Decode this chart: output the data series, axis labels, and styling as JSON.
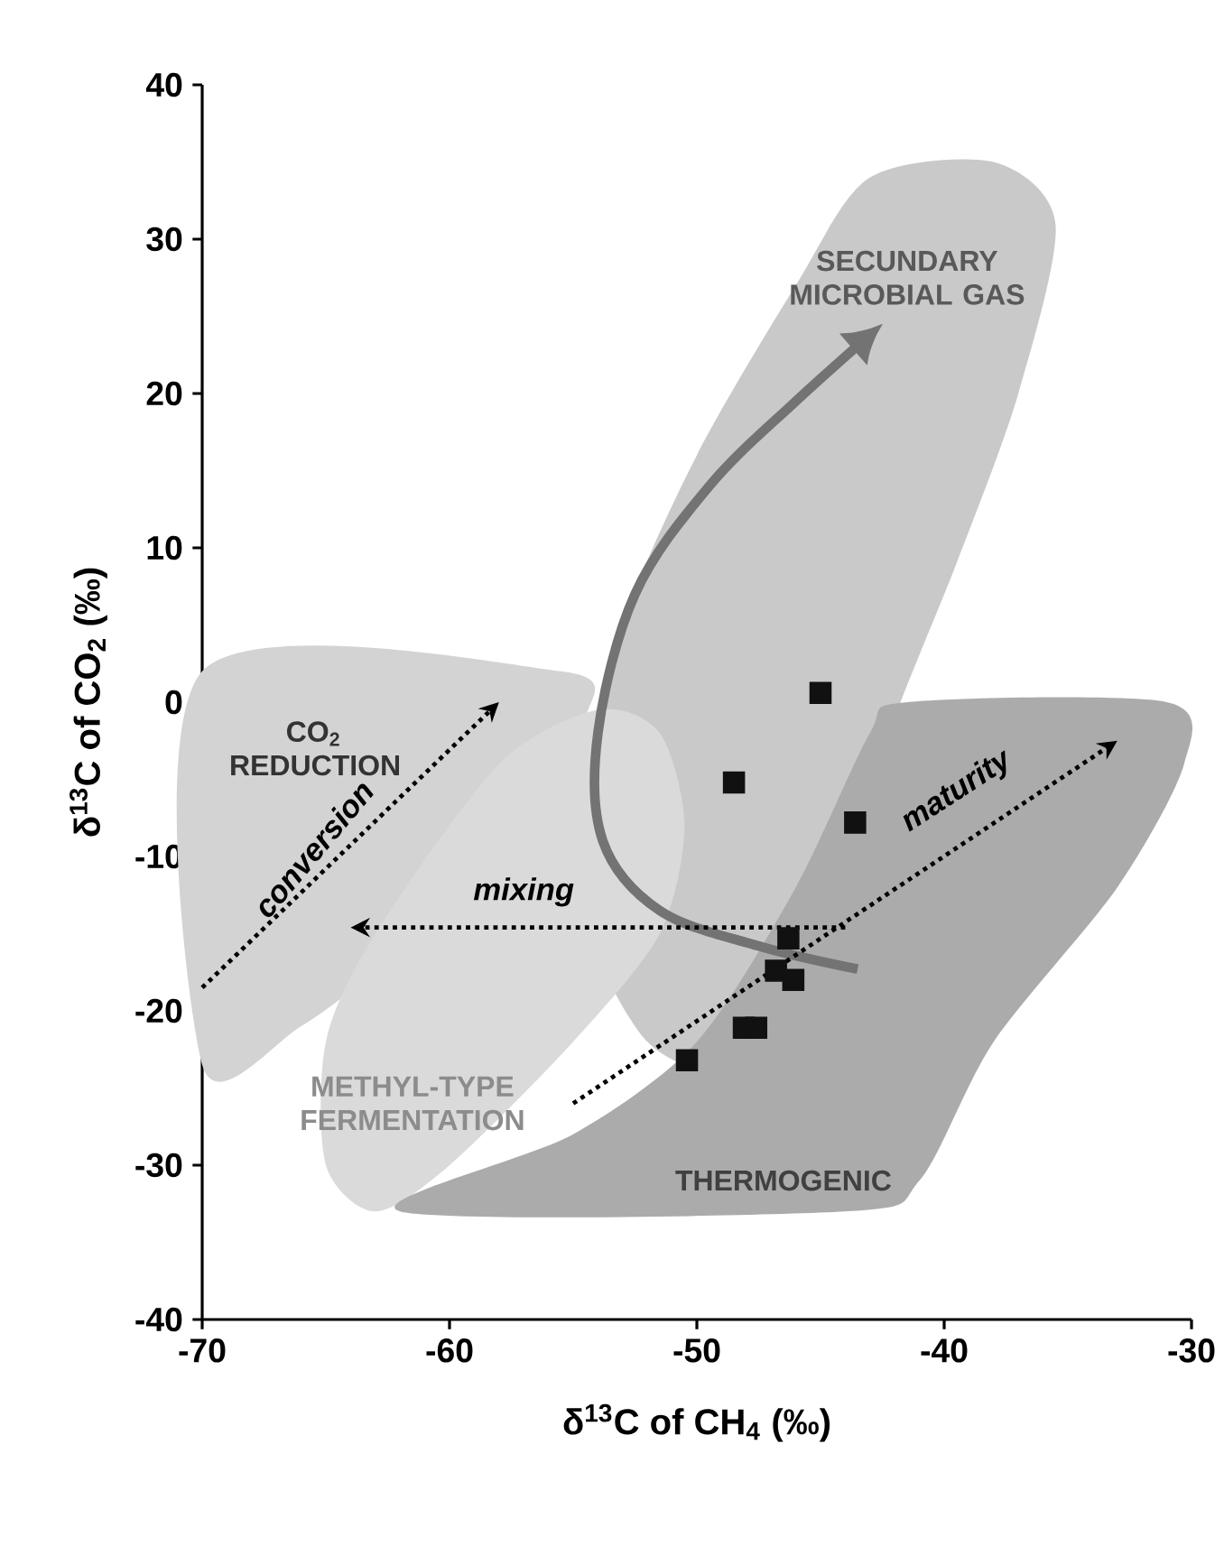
{
  "chart_data": {
    "type": "scatter",
    "xlabel": "δ$^{13}$C of CH$_{4}$ (‰)",
    "ylabel": "δ$^{13}$C of CO$_{2}$ (‰)",
    "x": [
      -45.0,
      -48.5,
      -43.6,
      -46.3,
      -46.8,
      -46.1,
      -48.1,
      -47.6,
      -50.4
    ],
    "values": [
      0.6,
      -5.2,
      -7.8,
      -15.3,
      -17.4,
      -18.0,
      -21.1,
      -21.1,
      -23.2
    ],
    "color": "#111111",
    "marker": "square",
    "grid": false,
    "xlim": [
      -70,
      -30
    ],
    "ylim": [
      -40,
      40
    ],
    "xticks": [
      -70,
      -60,
      -50,
      -40,
      -30
    ],
    "yticks": [
      -40,
      -30,
      -20,
      -10,
      0,
      10,
      20,
      30,
      40
    ],
    "annotations": [
      "SECUNDARY MICROBIAL GAS",
      "CO$_{2}$ REDUCTION",
      "METHYL-TYPE FERMENTATION",
      "THERMOGENIC",
      "conversion",
      "mixing",
      "maturity"
    ]
  }
}
